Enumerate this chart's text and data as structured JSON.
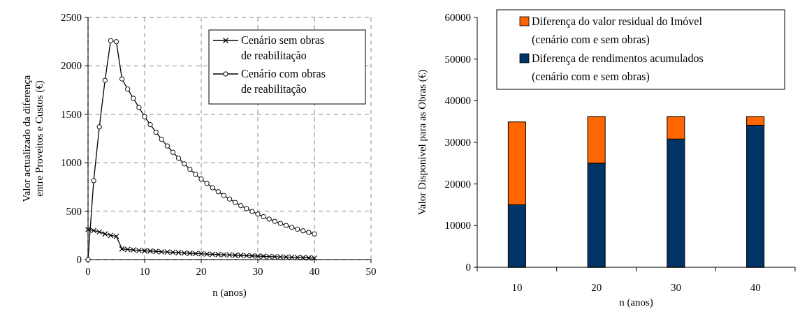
{
  "chart_data": [
    {
      "type": "line",
      "xlabel": "n (anos)",
      "ylabel": "Valor actualizado da diferença entre  Proveitos e Custos (€)",
      "xlim": [
        0,
        50
      ],
      "ylim": [
        0,
        2500
      ],
      "xticks": [
        0,
        10,
        20,
        30,
        40,
        50
      ],
      "yticks": [
        0,
        500,
        1000,
        1500,
        2000,
        2500
      ],
      "grid": true,
      "legend": "top right",
      "x": [
        0,
        1,
        2,
        3,
        4,
        5,
        6,
        7,
        8,
        9,
        10,
        11,
        12,
        13,
        14,
        15,
        16,
        17,
        18,
        19,
        20,
        21,
        22,
        23,
        24,
        25,
        26,
        27,
        28,
        29,
        30,
        31,
        32,
        33,
        34,
        35,
        36,
        37,
        38,
        39,
        40
      ],
      "series": [
        {
          "name": "Cenário sem obras de reabilitação",
          "color": "#000000",
          "marker": "cross",
          "values": [
            310,
            300,
            285,
            265,
            250,
            240,
            110,
            105,
            100,
            95,
            90,
            88,
            85,
            80,
            78,
            75,
            72,
            68,
            65,
            62,
            60,
            57,
            55,
            52,
            50,
            48,
            45,
            43,
            40,
            38,
            36,
            34,
            32,
            30,
            28,
            26,
            24,
            22,
            20,
            18,
            15
          ]
        },
        {
          "name": "Cenário com obras de reabilitação",
          "color": "#000000",
          "marker": "circle",
          "values": [
            0,
            815,
            1370,
            1850,
            2260,
            2250,
            1865,
            1760,
            1665,
            1570,
            1475,
            1393,
            1315,
            1242,
            1173,
            1108,
            1046,
            988,
            933,
            881,
            832,
            786,
            742,
            701,
            662,
            625,
            590,
            557,
            526,
            497,
            469,
            443,
            418,
            395,
            373,
            352,
            333,
            314,
            297,
            280,
            265
          ]
        }
      ]
    },
    {
      "type": "bar",
      "stacked": true,
      "xlabel": "n (anos)",
      "ylabel": "Valor Disponível para as Obras (€)",
      "categories": [
        "10",
        "20",
        "30",
        "40"
      ],
      "ylim": [
        0,
        60000
      ],
      "yticks": [
        0,
        10000,
        20000,
        30000,
        40000,
        50000,
        60000
      ],
      "legend": "top",
      "series": [
        {
          "name": "Diferença de rendimentos acumulados (cenário com e sem obras)",
          "color": "#003366",
          "values": [
            15000,
            25000,
            30800,
            34100
          ]
        },
        {
          "name": "Diferença do valor residual do Imóvel (cenário com e sem obras)",
          "color": "#ff6600",
          "values": [
            19900,
            11200,
            5400,
            2100
          ]
        }
      ]
    }
  ]
}
